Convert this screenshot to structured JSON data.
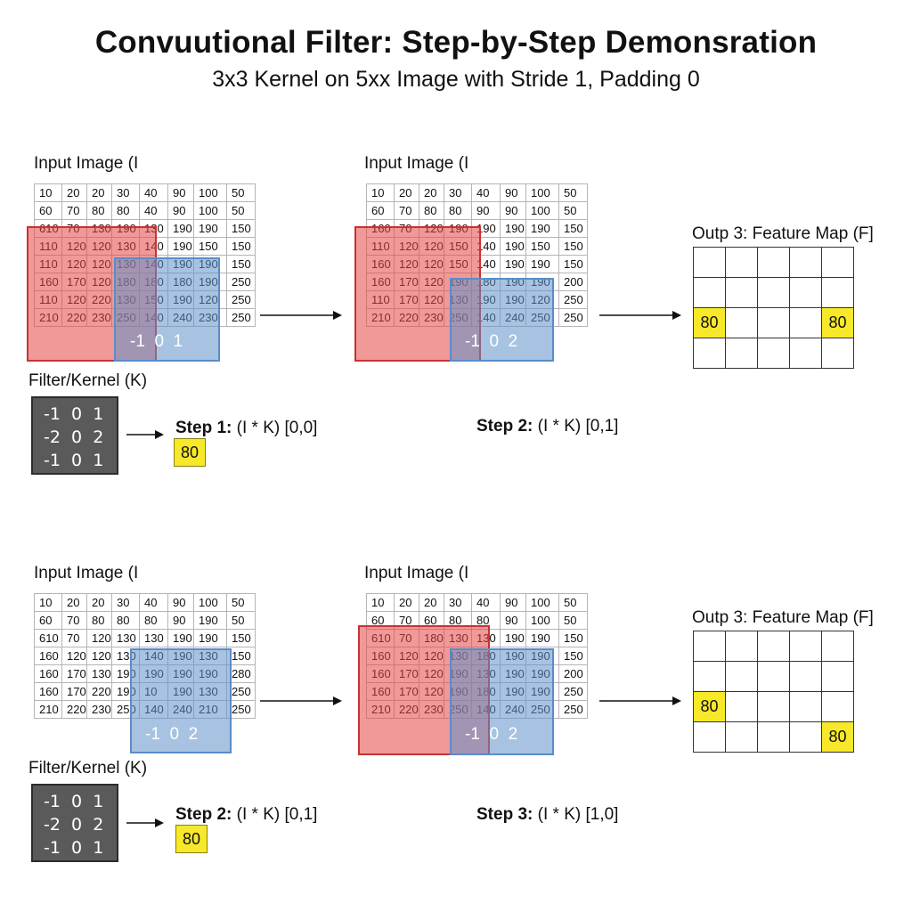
{
  "header": {
    "title": "Convuutional Filter: Step-by-Step Demonsration",
    "subtitle": "3x3 Kernel on 5xx Image with Stride 1, Padding 0"
  },
  "panels": [
    {
      "input_label": "Input Image (I",
      "rows": [
        [
          "10",
          "20",
          "20",
          "30",
          "40",
          "90",
          "100",
          "50"
        ],
        [
          "60",
          "70",
          "80",
          "80",
          "40",
          "90",
          "100",
          "50"
        ],
        [
          "610",
          "70",
          "130",
          "190",
          "130",
          "190",
          "190",
          "150"
        ],
        [
          "110",
          "120",
          "120",
          "130",
          "140",
          "190",
          "150",
          "150"
        ],
        [
          "110",
          "120",
          "120",
          "130",
          "140",
          "190",
          "190",
          "150"
        ],
        [
          "160",
          "170",
          "120",
          "180",
          "180",
          "180",
          "190",
          "250"
        ],
        [
          "110",
          "120",
          "220",
          "130",
          "150",
          "190",
          "120",
          "250"
        ],
        [
          "210",
          "220",
          "230",
          "250",
          "140",
          "240",
          "230",
          "250"
        ]
      ],
      "kernel_overlay": "-1  0  1"
    },
    {
      "input_label": "Input Image (I",
      "rows": [
        [
          "10",
          "20",
          "20",
          "30",
          "40",
          "90",
          "100",
          "50"
        ],
        [
          "60",
          "70",
          "80",
          "80",
          "90",
          "90",
          "100",
          "50"
        ],
        [
          "160",
          "70",
          "120",
          "190",
          "190",
          "190",
          "190",
          "150"
        ],
        [
          "110",
          "120",
          "120",
          "150",
          "140",
          "190",
          "150",
          "150"
        ],
        [
          "160",
          "120",
          "120",
          "150",
          "140",
          "190",
          "190",
          "150"
        ],
        [
          "160",
          "170",
          "120",
          "190",
          "180",
          "190",
          "190",
          "200"
        ],
        [
          "110",
          "170",
          "120",
          "130",
          "190",
          "190",
          "120",
          "250"
        ],
        [
          "210",
          "220",
          "230",
          "250",
          "140",
          "240",
          "250",
          "250"
        ]
      ],
      "kernel_overlay": "-1  0  2"
    },
    {
      "input_label": "Input Image (I",
      "rows": [
        [
          "10",
          "20",
          "20",
          "30",
          "40",
          "90",
          "100",
          "50"
        ],
        [
          "60",
          "70",
          "80",
          "80",
          "80",
          "90",
          "190",
          "50"
        ],
        [
          "610",
          "70",
          "120",
          "130",
          "130",
          "190",
          "190",
          "150"
        ],
        [
          "160",
          "120",
          "120",
          "130",
          "140",
          "190",
          "130",
          "150"
        ],
        [
          "160",
          "170",
          "130",
          "190",
          "190",
          "190",
          "190",
          "280"
        ],
        [
          "160",
          "170",
          "220",
          "190",
          "10",
          "190",
          "130",
          "250"
        ],
        [
          "210",
          "220",
          "230",
          "250",
          "140",
          "240",
          "210",
          "250"
        ]
      ],
      "kernel_overlay": "-1  0  2"
    },
    {
      "input_label": "Input Image (I",
      "rows": [
        [
          "10",
          "20",
          "20",
          "30",
          "40",
          "90",
          "100",
          "50"
        ],
        [
          "60",
          "70",
          "60",
          "80",
          "80",
          "90",
          "100",
          "50"
        ],
        [
          "610",
          "70",
          "180",
          "130",
          "130",
          "190",
          "190",
          "150"
        ],
        [
          "160",
          "120",
          "120",
          "130",
          "180",
          "190",
          "190",
          "150"
        ],
        [
          "160",
          "170",
          "120",
          "190",
          "130",
          "190",
          "190",
          "200"
        ],
        [
          "160",
          "170",
          "120",
          "190",
          "180",
          "190",
          "190",
          "250"
        ],
        [
          "210",
          "220",
          "230",
          "250",
          "140",
          "240",
          "250",
          "250"
        ]
      ],
      "kernel_overlay": "-1  0  2"
    }
  ],
  "filter": {
    "label": "Filter/Kernel (K)",
    "rows": [
      "-1  0  1",
      "-2  0  2",
      "-1  0  1"
    ]
  },
  "steps": [
    {
      "prefix": "Step 1:",
      "text": " (I * K) [0,0]",
      "value": "80"
    },
    {
      "prefix": "Step 2:",
      "text": " (I * K) [0,1]"
    },
    {
      "prefix": "Step 2:",
      "text": " (I * K) [0,1]",
      "value": "80"
    },
    {
      "prefix": "Step 3:",
      "text": " (I * K) [1,0]"
    }
  ],
  "feature_maps": [
    {
      "label": "Outp 3: Feature Map (F]",
      "cells": [
        [
          "",
          "",
          "",
          "",
          ""
        ],
        [
          "",
          "",
          "",
          "",
          ""
        ],
        [
          "80",
          "",
          "",
          "",
          "80"
        ],
        [
          "",
          "",
          "",
          "",
          ""
        ]
      ]
    },
    {
      "label": "Outp 3: Feature Map (F]",
      "cells": [
        [
          "",
          "",
          "",
          "",
          ""
        ],
        [
          "",
          "",
          "",
          "",
          ""
        ],
        [
          "80",
          "",
          "",
          "",
          ""
        ],
        [
          "",
          "",
          "",
          "",
          "80"
        ]
      ]
    }
  ],
  "colors": {
    "window_red": "#e64646",
    "window_blue": "#5f91c8",
    "highlight_yellow": "#f7e82a",
    "kernel_bg": "#5a5a5a"
  }
}
